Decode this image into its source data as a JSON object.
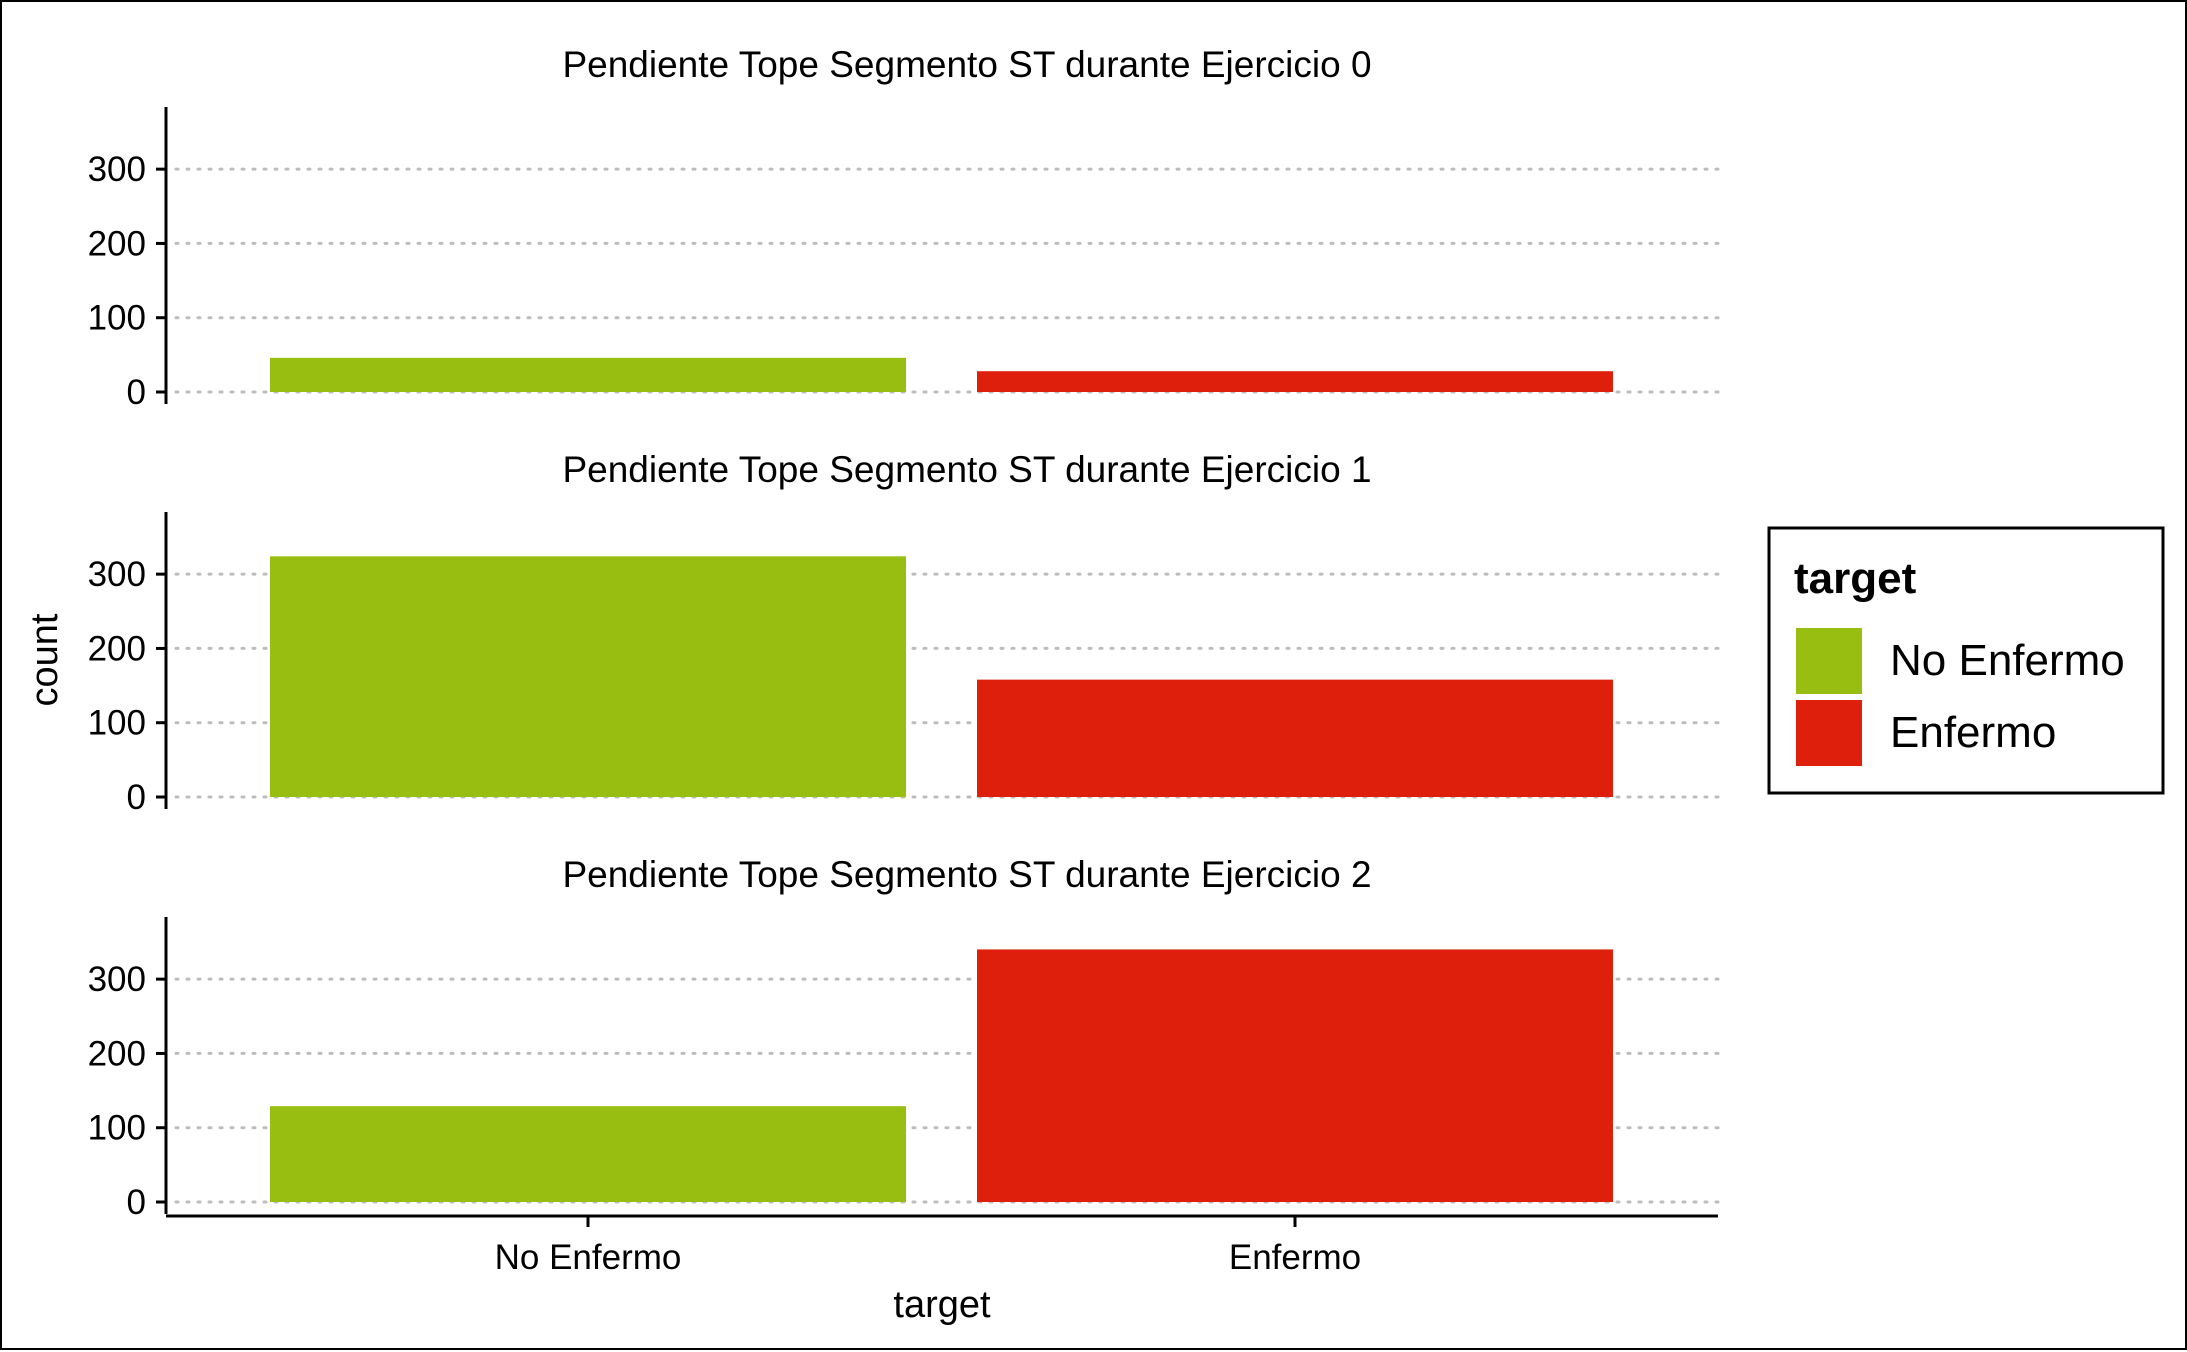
{
  "chart_data": {
    "type": "bar",
    "layout": "facet-wrap, 3 rows",
    "categories": [
      "No Enfermo",
      "Enfermo"
    ],
    "xlabel": "target",
    "ylabel": "count",
    "ylim": [
      0,
      350
    ],
    "yticks": [
      0,
      100,
      200,
      300
    ],
    "grid": "horizontal dotted",
    "legend": {
      "title": "target",
      "position": "right",
      "entries": [
        {
          "label": "No Enfermo",
          "color": "#97BE11"
        },
        {
          "label": "Enfermo",
          "color": "#DE1F0C"
        }
      ]
    },
    "colors": {
      "No Enfermo": "#97BE11",
      "Enfermo": "#DE1F0C"
    },
    "panels": [
      {
        "title": "Pendiente Tope Segmento ST durante Ejercicio 0",
        "values": [
          46,
          28
        ]
      },
      {
        "title": "Pendiente Tope Segmento ST durante Ejercicio 1",
        "values": [
          324,
          158
        ]
      },
      {
        "title": "Pendiente Tope Segmento ST durante Ejercicio 2",
        "values": [
          129,
          340
        ]
      }
    ]
  }
}
